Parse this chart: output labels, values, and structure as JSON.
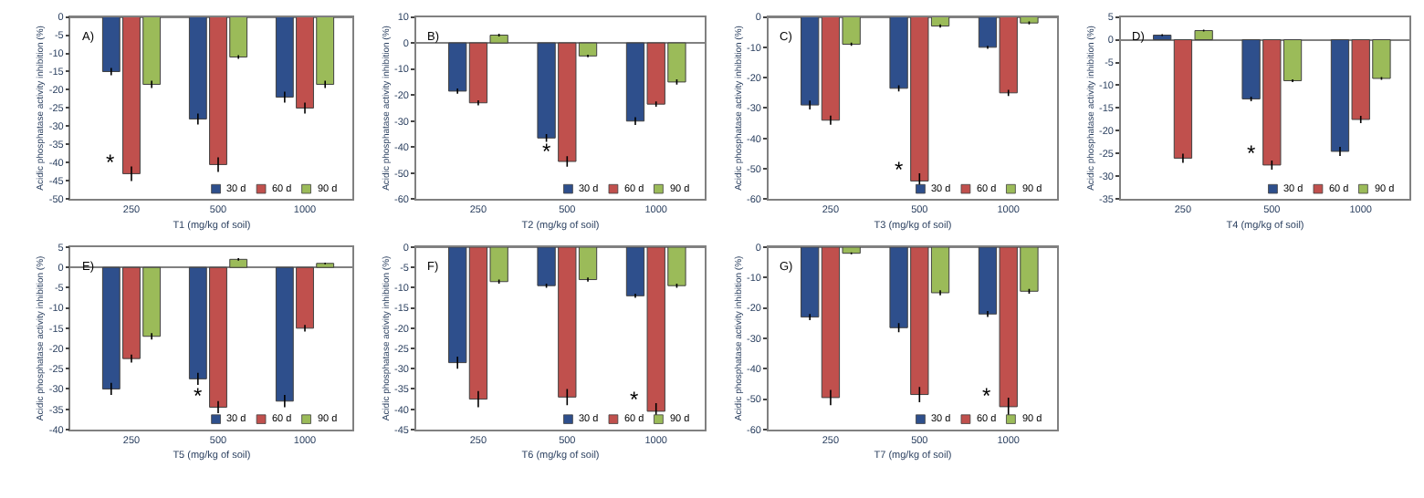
{
  "chart_data": [
    {
      "type": "bar",
      "xlabel": "T1 (mg/kg of soil)",
      "ylabel": "Acidic phosphatase activity inhibition (%)",
      "categories": [
        "250",
        "500",
        "1000"
      ],
      "ylim": [
        -50,
        0
      ],
      "yticks": [
        0,
        -5,
        -10,
        -15,
        -20,
        -25,
        -30,
        -35,
        -40,
        -45,
        -50
      ],
      "legend": "bottom right",
      "series": [
        {
          "name": "30 d",
          "color": "#2e4f8c",
          "values": [
            -15,
            -28,
            -22
          ],
          "errors": [
            1,
            1.5,
            1.5
          ]
        },
        {
          "name": "60 d",
          "color": "#c0504d",
          "values": [
            -43,
            -40.5,
            -25
          ],
          "errors": [
            2,
            2,
            1.5
          ]
        },
        {
          "name": "90 d",
          "color": "#9bbb59",
          "values": [
            -18.5,
            -11,
            -18.5
          ],
          "errors": [
            1,
            0.5,
            1
          ]
        }
      ],
      "annotations": [
        "A)",
        {
          "text": "*",
          "x": "250",
          "y": -43
        }
      ]
    },
    {
      "type": "bar",
      "xlabel": "T2 (mg/kg of soil)",
      "ylabel": "Acidic phosphatase activity inhibition (%)",
      "categories": [
        "250",
        "500",
        "1000"
      ],
      "ylim": [
        -60,
        10
      ],
      "yticks": [
        10,
        0,
        -10,
        -20,
        -30,
        -40,
        -50,
        -60
      ],
      "legend": "bottom right",
      "series": [
        {
          "name": "30 d",
          "color": "#2e4f8c",
          "values": [
            -18.5,
            -36.5,
            -30
          ],
          "errors": [
            1,
            1.5,
            1.5
          ]
        },
        {
          "name": "60 d",
          "color": "#c0504d",
          "values": [
            -23,
            -45.5,
            -23.5
          ],
          "errors": [
            1,
            2,
            1
          ]
        },
        {
          "name": "90 d",
          "color": "#9bbb59",
          "values": [
            3,
            -5,
            -15
          ],
          "errors": [
            0.5,
            0.5,
            1
          ]
        }
      ],
      "annotations": [
        "B)",
        {
          "text": "*",
          "x": "500",
          "y": -45.5
        }
      ]
    },
    {
      "type": "bar",
      "xlabel": "T3 (mg/kg of soil)",
      "ylabel": "Acidic phosphatase activity inhibition (%)",
      "categories": [
        "250",
        "500",
        "1000"
      ],
      "ylim": [
        -60,
        0
      ],
      "yticks": [
        0,
        -10,
        -20,
        -30,
        -40,
        -50,
        -60
      ],
      "legend": "bottom right",
      "series": [
        {
          "name": "30 d",
          "color": "#2e4f8c",
          "values": [
            -29,
            -23.5,
            -10
          ],
          "errors": [
            1.5,
            1,
            0.5
          ]
        },
        {
          "name": "60 d",
          "color": "#c0504d",
          "values": [
            -34,
            -54,
            -25
          ],
          "errors": [
            1.5,
            2.5,
            1
          ]
        },
        {
          "name": "90 d",
          "color": "#9bbb59",
          "values": [
            -9,
            -3,
            -2
          ],
          "errors": [
            0.5,
            0.5,
            0.5
          ]
        }
      ],
      "annotations": [
        "C)",
        {
          "text": "*",
          "x": "500",
          "y": -54
        }
      ]
    },
    {
      "type": "bar",
      "xlabel": "T4 (mg/kg of soil)",
      "ylabel": "Acidic phosphatase activity inhibition (%)",
      "categories": [
        "250",
        "500",
        "1000"
      ],
      "ylim": [
        -35,
        5
      ],
      "yticks": [
        5,
        0,
        -5,
        -10,
        -15,
        -20,
        -25,
        -30,
        -35
      ],
      "legend": "bottom right",
      "series": [
        {
          "name": "30 d",
          "color": "#2e4f8c",
          "values": [
            1,
            -13,
            -24.5
          ],
          "errors": [
            0.2,
            0.5,
            1
          ]
        },
        {
          "name": "60 d",
          "color": "#c0504d",
          "values": [
            -26,
            -27.5,
            -17.5
          ],
          "errors": [
            1,
            1,
            0.8
          ]
        },
        {
          "name": "90 d",
          "color": "#9bbb59",
          "values": [
            2,
            -9,
            -8.5
          ],
          "errors": [
            0.2,
            0.3,
            0.3
          ]
        }
      ],
      "annotations": [
        "D)",
        {
          "text": "*",
          "x": "500",
          "y": -27.5
        }
      ]
    },
    {
      "type": "bar",
      "xlabel": "T5 (mg/kg of soil)",
      "ylabel": "Acidic phosphatase activity inhibition (%)",
      "categories": [
        "250",
        "500",
        "1000"
      ],
      "ylim": [
        -40,
        5
      ],
      "yticks": [
        5,
        0,
        -5,
        -10,
        -15,
        -20,
        -25,
        -30,
        -35,
        -40
      ],
      "legend": "bottom right",
      "series": [
        {
          "name": "30 d",
          "color": "#2e4f8c",
          "values": [
            -30,
            -27.5,
            -33
          ],
          "errors": [
            1.5,
            1.5,
            1.5
          ]
        },
        {
          "name": "60 d",
          "color": "#c0504d",
          "values": [
            -22.5,
            -34.5,
            -15
          ],
          "errors": [
            1,
            1.5,
            0.8
          ]
        },
        {
          "name": "90 d",
          "color": "#9bbb59",
          "values": [
            -17,
            2,
            1
          ],
          "errors": [
            0.8,
            0.3,
            0.2
          ]
        }
      ],
      "annotations": [
        "E)",
        {
          "text": "*",
          "x": "500",
          "y": -34.5
        }
      ]
    },
    {
      "type": "bar",
      "xlabel": "T6 (mg/kg of soil)",
      "ylabel": "Acidic phosphatase activity inhibition (%)",
      "categories": [
        "250",
        "500",
        "1000"
      ],
      "ylim": [
        -45,
        0
      ],
      "yticks": [
        0,
        -5,
        -10,
        -15,
        -20,
        -25,
        -30,
        -35,
        -40,
        -45
      ],
      "legend": "bottom right",
      "series": [
        {
          "name": "30 d",
          "color": "#2e4f8c",
          "values": [
            -28.5,
            -9.5,
            -12
          ],
          "errors": [
            1.5,
            0.5,
            0.5
          ]
        },
        {
          "name": "60 d",
          "color": "#c0504d",
          "values": [
            -37.5,
            -37,
            -40.5
          ],
          "errors": [
            2,
            2,
            2
          ]
        },
        {
          "name": "90 d",
          "color": "#9bbb59",
          "values": [
            -8.5,
            -8,
            -9.5
          ],
          "errors": [
            0.5,
            0.5,
            0.5
          ]
        }
      ],
      "annotations": [
        "F)",
        {
          "text": "*",
          "x": "1000",
          "y": -40.5
        }
      ]
    },
    {
      "type": "bar",
      "xlabel": "T7 (mg/kg of soil)",
      "ylabel": "Acidic phosphatase activity inhibition (%)",
      "categories": [
        "250",
        "500",
        "1000"
      ],
      "ylim": [
        -60,
        0
      ],
      "yticks": [
        0,
        -10,
        -20,
        -30,
        -40,
        -50,
        -60
      ],
      "legend": "bottom right",
      "series": [
        {
          "name": "30 d",
          "color": "#2e4f8c",
          "values": [
            -23,
            -26.5,
            -22
          ],
          "errors": [
            1,
            1.5,
            1
          ]
        },
        {
          "name": "60 d",
          "color": "#c0504d",
          "values": [
            -49.5,
            -48.5,
            -52.5
          ],
          "errors": [
            2.5,
            2.5,
            3
          ]
        },
        {
          "name": "90 d",
          "color": "#9bbb59",
          "values": [
            -2,
            -15,
            -14.5
          ],
          "errors": [
            0.3,
            0.8,
            0.8
          ]
        }
      ],
      "annotations": [
        "G)",
        {
          "text": "*",
          "x": "1000",
          "y": -52.5
        }
      ]
    }
  ]
}
